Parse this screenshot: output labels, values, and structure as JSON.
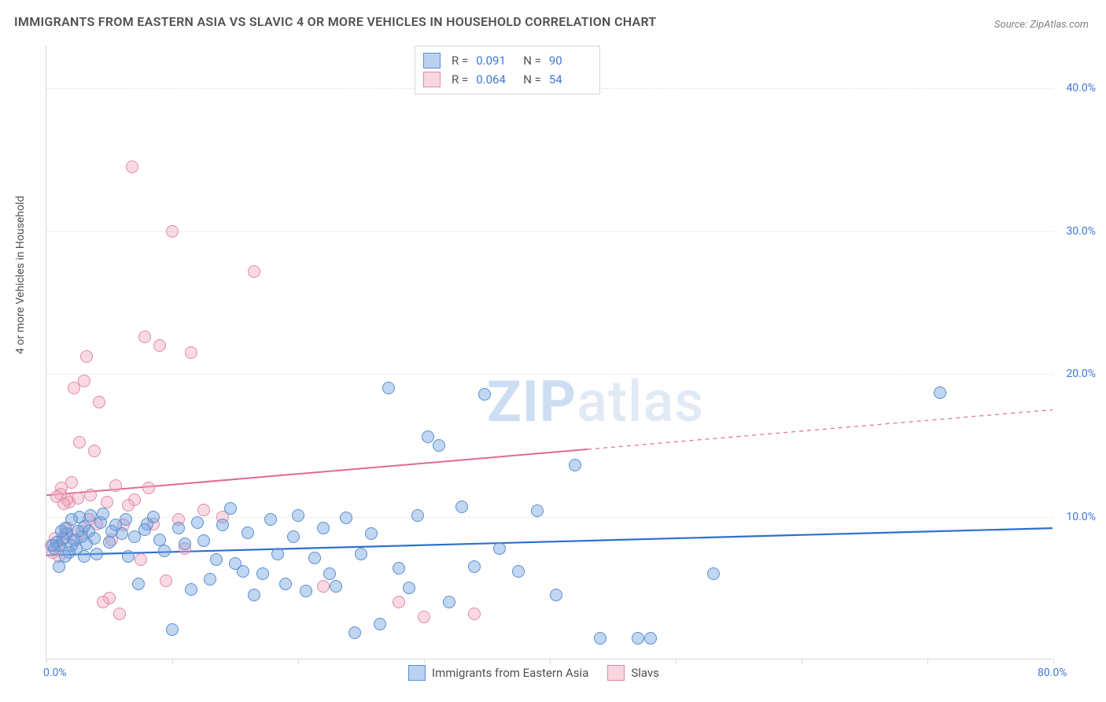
{
  "title": "IMMIGRANTS FROM EASTERN ASIA VS SLAVIC 4 OR MORE VEHICLES IN HOUSEHOLD CORRELATION CHART",
  "source": "Source: ZipAtlas.com",
  "watermark_bold": "ZIP",
  "watermark_light": "atlas",
  "ylabel": "4 or more Vehicles in Household",
  "chart": {
    "type": "scatter",
    "background_color": "#ffffff",
    "grid_color": "#e6e6e6",
    "axis_color": "#d8d8d8",
    "tick_label_color": "#3d78d6",
    "label_color": "#505050",
    "title_fontsize": 16,
    "label_fontsize": 14,
    "marker_size": 16,
    "xlim": [
      0,
      80
    ],
    "ylim": [
      0,
      43
    ],
    "xticks": [
      0,
      10,
      20,
      30,
      40,
      50,
      60,
      70,
      80
    ],
    "xtick_labels": {
      "0": "0.0%",
      "80": "80.0%"
    },
    "yticks": [
      10,
      20,
      30,
      40
    ],
    "ytick_labels": {
      "10": "10.0%",
      "20": "20.0%",
      "30": "30.0%",
      "40": "40.0%"
    },
    "series": [
      {
        "name": "Immigrants from Eastern Asia",
        "marker_fill": "rgba(118,165,224,0.45)",
        "marker_stroke": "#5a8fd0",
        "trend_color": "#2f6fd0",
        "trend_width": 2.2,
        "R": "0.091",
        "N": "90",
        "trend": {
          "x0": 0,
          "y0": 7.3,
          "x1": 80,
          "y1": 9.2,
          "dashed_after_x": null
        },
        "points": [
          [
            0.5,
            8
          ],
          [
            0.6,
            7.8
          ],
          [
            0.8,
            8.2
          ],
          [
            1,
            8
          ],
          [
            1,
            6.5
          ],
          [
            1.2,
            9
          ],
          [
            1.3,
            8.5
          ],
          [
            1.5,
            7.2
          ],
          [
            1.5,
            9.2
          ],
          [
            1.6,
            8.8
          ],
          [
            1.8,
            7.5
          ],
          [
            2,
            8
          ],
          [
            2,
            9.8
          ],
          [
            2.2,
            8.4
          ],
          [
            2.4,
            7.8
          ],
          [
            2.5,
            9
          ],
          [
            2.6,
            10
          ],
          [
            2.8,
            8.6
          ],
          [
            3,
            7.2
          ],
          [
            3,
            9.3
          ],
          [
            3.2,
            8.1
          ],
          [
            3.4,
            9
          ],
          [
            3.5,
            10.1
          ],
          [
            3.8,
            8.5
          ],
          [
            4,
            7.4
          ],
          [
            4.3,
            9.6
          ],
          [
            4.5,
            10.2
          ],
          [
            5,
            8.2
          ],
          [
            5.2,
            9
          ],
          [
            5.5,
            9.4
          ],
          [
            6,
            8.8
          ],
          [
            6.3,
            9.8
          ],
          [
            6.5,
            7.2
          ],
          [
            7,
            8.6
          ],
          [
            7.3,
            5.3
          ],
          [
            7.8,
            9.1
          ],
          [
            8,
            9.5
          ],
          [
            8.5,
            10
          ],
          [
            9,
            8.4
          ],
          [
            9.4,
            7.6
          ],
          [
            10,
            2.1
          ],
          [
            10.5,
            9.2
          ],
          [
            11,
            8.1
          ],
          [
            11.5,
            4.9
          ],
          [
            12,
            9.6
          ],
          [
            12.5,
            8.3
          ],
          [
            13,
            5.6
          ],
          [
            13.5,
            7.0
          ],
          [
            14,
            9.4
          ],
          [
            14.6,
            10.6
          ],
          [
            15,
            6.7
          ],
          [
            15.6,
            6.2
          ],
          [
            16,
            8.9
          ],
          [
            16.5,
            4.5
          ],
          [
            17.2,
            6.0
          ],
          [
            17.8,
            9.8
          ],
          [
            18.4,
            7.4
          ],
          [
            19,
            5.3
          ],
          [
            19.6,
            8.6
          ],
          [
            20,
            10.1
          ],
          [
            20.6,
            4.8
          ],
          [
            21.3,
            7.1
          ],
          [
            22,
            9.2
          ],
          [
            22.5,
            6.0
          ],
          [
            23,
            5.1
          ],
          [
            23.8,
            9.9
          ],
          [
            24.5,
            1.9
          ],
          [
            25,
            7.4
          ],
          [
            25.8,
            8.8
          ],
          [
            26.5,
            2.5
          ],
          [
            27.2,
            19.0
          ],
          [
            28,
            6.4
          ],
          [
            28.8,
            5.0
          ],
          [
            29.5,
            10.1
          ],
          [
            30.3,
            15.6
          ],
          [
            31.2,
            15.0
          ],
          [
            32,
            4.0
          ],
          [
            33,
            10.7
          ],
          [
            34,
            6.5
          ],
          [
            34.8,
            18.6
          ],
          [
            36,
            7.8
          ],
          [
            37.5,
            6.2
          ],
          [
            39,
            10.4
          ],
          [
            40.5,
            4.5
          ],
          [
            42,
            13.6
          ],
          [
            44,
            1.5
          ],
          [
            47,
            1.5
          ],
          [
            48,
            1.5
          ],
          [
            53,
            6.0
          ],
          [
            71,
            18.7
          ]
        ]
      },
      {
        "name": "Slavs",
        "marker_fill": "rgba(241,172,192,0.45)",
        "marker_stroke": "#e18aa5",
        "trend_color": "#e06c8c",
        "trend_width": 2.0,
        "R": "0.064",
        "N": "54",
        "trend": {
          "x0": 0,
          "y0": 11.5,
          "x1": 80,
          "y1": 17.5,
          "dashed_after_x": 43
        },
        "points": [
          [
            0.4,
            8
          ],
          [
            0.5,
            7.5
          ],
          [
            0.7,
            8.5
          ],
          [
            0.8,
            11.4
          ],
          [
            0.9,
            8.0
          ],
          [
            1.0,
            7.2
          ],
          [
            1.1,
            11.6
          ],
          [
            1.2,
            12.0
          ],
          [
            1.3,
            8.4
          ],
          [
            1.4,
            10.9
          ],
          [
            1.5,
            8.8
          ],
          [
            1.6,
            11.2
          ],
          [
            1.7,
            9.2
          ],
          [
            1.8,
            11.0
          ],
          [
            2.0,
            12.4
          ],
          [
            2.2,
            19.0
          ],
          [
            2.3,
            8.4
          ],
          [
            2.5,
            11.3
          ],
          [
            2.6,
            15.2
          ],
          [
            2.8,
            9.0
          ],
          [
            3.0,
            19.5
          ],
          [
            3.2,
            21.2
          ],
          [
            3.4,
            9.8
          ],
          [
            3.5,
            11.5
          ],
          [
            3.8,
            14.6
          ],
          [
            4.0,
            9.5
          ],
          [
            4.2,
            18.0
          ],
          [
            4.5,
            4.0
          ],
          [
            4.8,
            11.0
          ],
          [
            5.0,
            4.3
          ],
          [
            5.2,
            8.4
          ],
          [
            5.5,
            12.2
          ],
          [
            5.8,
            3.2
          ],
          [
            6.1,
            9.4
          ],
          [
            6.5,
            10.8
          ],
          [
            6.8,
            34.5
          ],
          [
            7.0,
            11.2
          ],
          [
            7.5,
            7.0
          ],
          [
            7.8,
            22.6
          ],
          [
            8.1,
            12.0
          ],
          [
            8.5,
            9.5
          ],
          [
            9.0,
            22.0
          ],
          [
            9.5,
            5.5
          ],
          [
            10,
            30.0
          ],
          [
            10.5,
            9.8
          ],
          [
            11,
            7.8
          ],
          [
            11.5,
            21.5
          ],
          [
            12.5,
            10.5
          ],
          [
            14,
            10.0
          ],
          [
            16.5,
            27.2
          ],
          [
            22,
            5.1
          ],
          [
            28,
            4.0
          ],
          [
            30,
            3.0
          ],
          [
            34,
            3.2
          ]
        ]
      }
    ]
  },
  "legend": {
    "r_label": "R  =",
    "n_label": "N  ="
  },
  "bottom_legend": [
    {
      "swatch": "blue",
      "label": "Immigrants from Eastern Asia"
    },
    {
      "swatch": "pink",
      "label": "Slavs"
    }
  ]
}
